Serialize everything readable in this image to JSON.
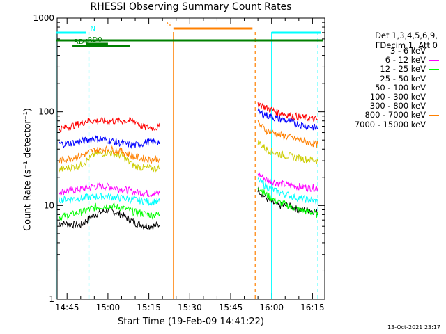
{
  "chart_data": {
    "type": "line",
    "title": "RHESSI Observing Summary Count Rates",
    "xlabel": "Start Time (19-Feb-09 14:41:22)",
    "ylabel": "Count Rate (s⁻¹ detector⁻¹)",
    "yscale": "log",
    "ylim": [
      1,
      1000
    ],
    "xlim": [
      "14:41:22",
      "16:19:30"
    ],
    "x_ticks": [
      "14:45",
      "15:00",
      "15:15",
      "15:30",
      "15:45",
      "16:00",
      "16:15"
    ],
    "y_ticks": [
      "1",
      "10",
      "100",
      "1000"
    ],
    "legend_header": [
      "Det 1,3,4,5,6,9,",
      "FDecim 1, Att 0"
    ],
    "legend_position": "right",
    "series": [
      {
        "name": "3 - 6 keV",
        "color": "#000000",
        "segments": [
          {
            "x": [
              "14:42",
              "14:50",
              "14:55",
              "15:00",
              "15:05",
              "15:10",
              "15:15",
              "15:19"
            ],
            "y": [
              6.5,
              6.2,
              8.0,
              9.0,
              8.0,
              6.5,
              6.0,
              6.2
            ]
          },
          {
            "x": [
              "15:55",
              "15:58",
              "16:02",
              "16:06",
              "16:10",
              "16:14",
              "16:17"
            ],
            "y": [
              15,
              12,
              10,
              10,
              9,
              9,
              8.5
            ]
          }
        ]
      },
      {
        "name": "6 - 12 keV",
        "color": "#ff00ff",
        "segments": [
          {
            "x": [
              "14:42",
              "14:50",
              "14:55",
              "15:00",
              "15:05",
              "15:10",
              "15:15",
              "15:19"
            ],
            "y": [
              14,
              15,
              16,
              16,
              15,
              14,
              13.5,
              13.5
            ]
          },
          {
            "x": [
              "15:55",
              "15:58",
              "16:02",
              "16:06",
              "16:10",
              "16:14",
              "16:17"
            ],
            "y": [
              22,
              19,
              17.5,
              16.5,
              16,
              15.5,
              15.5
            ]
          }
        ]
      },
      {
        "name": "12 - 25 keV",
        "color": "#00ff00",
        "segments": [
          {
            "x": [
              "14:42",
              "14:50",
              "14:55",
              "15:00",
              "15:05",
              "15:10",
              "15:15",
              "15:19"
            ],
            "y": [
              7.5,
              8.5,
              9.5,
              10,
              9.5,
              8.5,
              8.0,
              8.0
            ]
          },
          {
            "x": [
              "15:55",
              "15:58",
              "16:02",
              "16:06",
              "16:10",
              "16:14",
              "16:17"
            ],
            "y": [
              16,
              13,
              11,
              10,
              9,
              8.5,
              8
            ]
          }
        ]
      },
      {
        "name": "25 - 50 keV",
        "color": "#00ffff",
        "segments": [
          {
            "x": [
              "14:42",
              "14:50",
              "14:55",
              "15:00",
              "15:05",
              "15:10",
              "15:15",
              "15:19"
            ],
            "y": [
              11.5,
              12,
              12.5,
              12.5,
              12,
              11.5,
              11,
              11
            ]
          },
          {
            "x": [
              "15:55",
              "15:58",
              "16:02",
              "16:06",
              "16:10",
              "16:14",
              "16:17"
            ],
            "y": [
              19,
              16,
              14,
              13,
              12,
              11.5,
              11
            ]
          }
        ]
      },
      {
        "name": "50 - 100 keV",
        "color": "#cccc00",
        "segments": [
          {
            "x": [
              "14:42",
              "14:50",
              "14:55",
              "15:00",
              "15:05",
              "15:10",
              "15:15",
              "15:19"
            ],
            "y": [
              24,
              27,
              35,
              37,
              34,
              26,
              25,
              25
            ]
          },
          {
            "x": [
              "15:55",
              "15:58",
              "16:02",
              "16:06",
              "16:10",
              "16:14",
              "16:17"
            ],
            "y": [
              48,
              40,
              36,
              34,
              32,
              31,
              30
            ]
          }
        ]
      },
      {
        "name": "100 - 300 keV",
        "color": "#ff0000",
        "segments": [
          {
            "x": [
              "14:42",
              "14:50",
              "14:52",
              "15:00",
              "15:05",
              "15:10",
              "15:13",
              "15:19"
            ],
            "y": [
              65,
              75,
              80,
              80,
              80,
              80,
              68,
              68
            ]
          },
          {
            "x": [
              "15:55",
              "15:58",
              "16:02",
              "16:06",
              "16:10",
              "16:14",
              "16:17"
            ],
            "y": [
              125,
              110,
              100,
              93,
              88,
              85,
              82
            ]
          }
        ]
      },
      {
        "name": "300 - 800 keV",
        "color": "#0000ff",
        "segments": [
          {
            "x": [
              "14:42",
              "14:50",
              "14:55",
              "15:00",
              "15:05",
              "15:10",
              "15:15",
              "15:19"
            ],
            "y": [
              45,
              48,
              52,
              50,
              46,
              44,
              48,
              48
            ]
          },
          {
            "x": [
              "15:55",
              "15:58",
              "16:02",
              "16:06",
              "16:10",
              "16:14",
              "16:17"
            ],
            "y": [
              100,
              92,
              85,
              80,
              74,
              70,
              67
            ]
          }
        ]
      },
      {
        "name": "800 - 7000 keV",
        "color": "#ff8000",
        "segments": [
          {
            "x": [
              "14:42",
              "14:50",
              "14:55",
              "15:00",
              "15:05",
              "15:10",
              "15:15",
              "15:19"
            ],
            "y": [
              30,
              34,
              39,
              40,
              38,
              33,
              31,
              32
            ]
          },
          {
            "x": [
              "15:55",
              "15:58",
              "16:02",
              "16:06",
              "16:10",
              "16:14",
              "16:17"
            ],
            "y": [
              75,
              64,
              58,
              54,
              50,
              47,
              45
            ]
          }
        ]
      },
      {
        "name": "7000 - 15000 keV",
        "color": "#808000",
        "segments": []
      }
    ],
    "flag_bars": [
      {
        "label": "",
        "color": "#00ffff",
        "x": [
          "14:41",
          "14:52"
        ]
      },
      {
        "label": "",
        "color": "#00ffff",
        "x": [
          "16:00",
          "16:18"
        ]
      },
      {
        "label": "N",
        "color": "#00ffff",
        "x": [
          "14:53",
          "14:53"
        ]
      },
      {
        "label": "S",
        "color": "#ff8000",
        "x": [
          "15:24",
          "15:53"
        ]
      },
      {
        "label": "RD0",
        "color": "#008000",
        "x": [
          "14:52",
          "15:00"
        ]
      },
      {
        "label": "RD4",
        "color": "#008000",
        "x": [
          "14:47",
          "15:08"
        ]
      },
      {
        "label": "",
        "color": "#008000",
        "x": [
          "14:41",
          "16:19"
        ]
      }
    ],
    "vlines": [
      {
        "color": "#00ffff",
        "style": "dashed",
        "x": "14:53"
      },
      {
        "color": "#00ffff",
        "style": "solid",
        "x": "14:41"
      },
      {
        "color": "#00ffff",
        "style": "solid",
        "x": "16:00"
      },
      {
        "color": "#00ffff",
        "style": "dashed",
        "x": "16:17"
      },
      {
        "color": "#ff8000",
        "style": "solid",
        "x": "15:24"
      },
      {
        "color": "#ff8000",
        "style": "dashed",
        "x": "15:54"
      }
    ]
  },
  "legend": [
    {
      "label": "3 - 6 keV",
      "color": "#000000"
    },
    {
      "label": "6 - 12 keV",
      "color": "#ff00ff"
    },
    {
      "label": "12 - 25 keV",
      "color": "#00ff00"
    },
    {
      "label": "25 - 50 keV",
      "color": "#00ffff"
    },
    {
      "label": "50 - 100 keV",
      "color": "#cccc00"
    },
    {
      "label": "100 - 300 keV",
      "color": "#ff0000"
    },
    {
      "label": "300 - 800 keV",
      "color": "#0000ff"
    },
    {
      "label": "800 - 7000 keV",
      "color": "#ff8000"
    },
    {
      "label": "7000 - 15000 keV",
      "color": "#808000"
    }
  ],
  "header": {
    "line1": "Det 1,3,4,5,6,9,",
    "line2": "FDecim 1, Att 0"
  },
  "timestamp": "13-Oct-2021 23:17"
}
